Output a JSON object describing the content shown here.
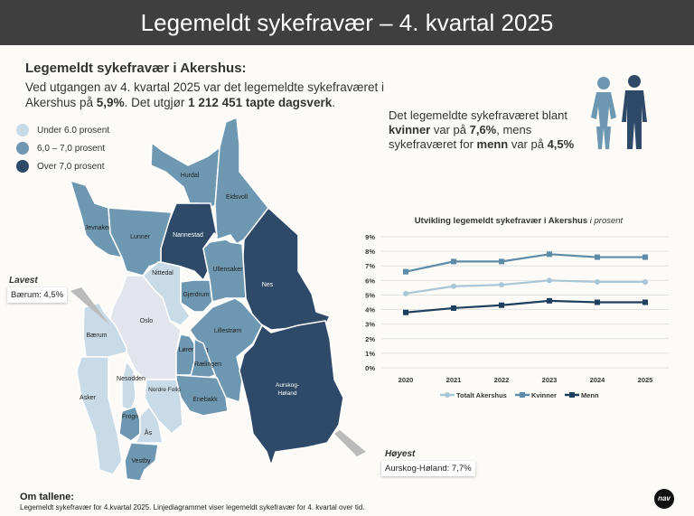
{
  "header": {
    "title": "Legemeldt sykefravær – 4. kvartal 2025"
  },
  "summary": {
    "heading": "Legemeldt sykefravær i Akershus:",
    "text_1": "Ved utgangen av 4. kvartal 2025 var det legemeldte sykefraværet i Akershus på ",
    "rate": "5,9%",
    "text_2": ". Det utgjør ",
    "days": "1 212 451 tapte dagsverk",
    "text_3": "."
  },
  "legend": [
    {
      "label": "Under 6.0 prosent",
      "color": "#c9dbe7"
    },
    {
      "label": "6,0 – 7,0 prosent",
      "color": "#6e97b1"
    },
    {
      "label": "Over 7,0 prosent",
      "color": "#2e4a68"
    }
  ],
  "gender": {
    "t1": "Det legemeldte sykefraværet blant ",
    "women": "kvinner",
    "t2": " var på ",
    "women_rate": "7,6%",
    "t3": ", mens sykefraværet for ",
    "men": "menn",
    "t4": " var på ",
    "men_rate": "4,5%"
  },
  "map": {
    "municipalities": [
      {
        "name": "Hurdal",
        "level": "mid"
      },
      {
        "name": "Eidsvoll",
        "level": "mid"
      },
      {
        "name": "Nannestad",
        "level": "high"
      },
      {
        "name": "Jevnaker",
        "level": "mid"
      },
      {
        "name": "Lunner",
        "level": "mid"
      },
      {
        "name": "Nes",
        "level": "high"
      },
      {
        "name": "Ullensaker",
        "level": "mid"
      },
      {
        "name": "Gjerdrum",
        "level": "mid"
      },
      {
        "name": "Nittedal",
        "level": "low"
      },
      {
        "name": "Oslo",
        "level": "none"
      },
      {
        "name": "Bærum",
        "level": "low"
      },
      {
        "name": "Asker",
        "level": "low"
      },
      {
        "name": "Lillestrøm",
        "level": "mid"
      },
      {
        "name": "Lørenskog",
        "level": "mid"
      },
      {
        "name": "Rælingen",
        "level": "mid"
      },
      {
        "name": "Enebakk",
        "level": "mid"
      },
      {
        "name": "Aurskog-Høland",
        "level": "high"
      },
      {
        "name": "Nesodden",
        "level": "low"
      },
      {
        "name": "Nordre Follo",
        "level": "low"
      },
      {
        "name": "Frogn",
        "level": "mid"
      },
      {
        "name": "Ås",
        "level": "low"
      },
      {
        "name": "Vestby",
        "level": "mid"
      }
    ],
    "lowest": {
      "title": "Lavest",
      "label": "Bærum: 4,5%"
    },
    "highest": {
      "title": "Høyest",
      "label": "Aurskog-Høland: 7,7%"
    }
  },
  "chart_data": {
    "type": "line",
    "title": "Utvikling legemeldt sykefravær i Akershus",
    "title_italic": "i prosent",
    "categories": [
      "2020",
      "2021",
      "2022",
      "2023",
      "2024",
      "2025"
    ],
    "ylim": [
      0,
      9
    ],
    "yticks": [
      "0%",
      "1%",
      "2%",
      "3%",
      "4%",
      "5%",
      "6%",
      "7%",
      "8%",
      "9%"
    ],
    "grid": true,
    "legend_position": "bottom",
    "series": [
      {
        "name": "Totalt Akershus",
        "values": [
          5.1,
          5.6,
          5.7,
          6.0,
          5.9,
          5.9
        ],
        "color": "#a9c6d6",
        "marker": "circle"
      },
      {
        "name": "Kvinner",
        "values": [
          6.6,
          7.3,
          7.3,
          7.8,
          7.6,
          7.6
        ],
        "color": "#5d8ba8",
        "marker": "square"
      },
      {
        "name": "Menn",
        "values": [
          3.8,
          4.1,
          4.3,
          4.6,
          4.5,
          4.5
        ],
        "color": "#1f3f5f",
        "marker": "square"
      }
    ]
  },
  "footer": {
    "heading": "Om tallene:",
    "text": "Legemeldt sykefravær for 4.kvartal 2025. Linjediagrammet viser legemeldt sykefravær for 4. kvartal over tid.",
    "logo": "nav"
  }
}
